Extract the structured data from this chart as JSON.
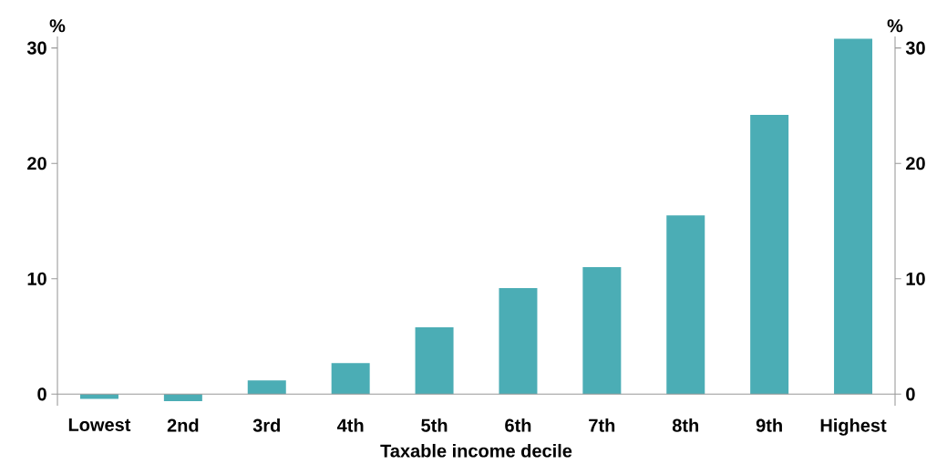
{
  "chart_data": {
    "type": "bar",
    "xlabel": "Taxable income decile",
    "ylabel": "%",
    "y2label": "%",
    "categories": [
      "Lowest",
      "2nd",
      "3rd",
      "4th",
      "5th",
      "6th",
      "7th",
      "8th",
      "9th",
      "Highest"
    ],
    "values": [
      -0.4,
      -0.6,
      1.2,
      2.7,
      5.8,
      9.2,
      11.0,
      15.5,
      24.2,
      30.8
    ],
    "color": "#4badb5",
    "ylim": [
      -1,
      31
    ],
    "yticks": [
      0,
      10,
      20,
      30
    ],
    "y2lim": [
      -1,
      31
    ],
    "y2ticks": [
      0,
      10,
      20,
      30
    ],
    "grid": false
  }
}
